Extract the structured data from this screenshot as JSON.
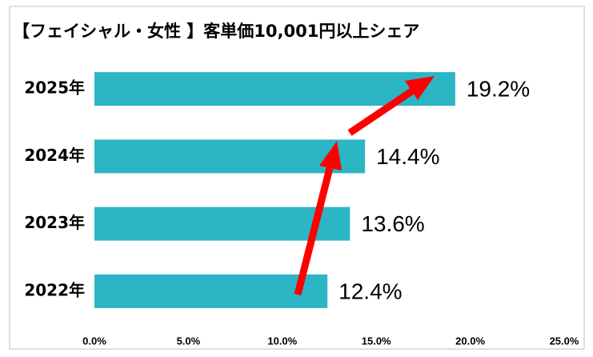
{
  "chart_data": {
    "type": "bar",
    "orientation": "horizontal",
    "title": "【フェイシャル・女性 】客単価10,001円以上シェア",
    "categories": [
      "2025年",
      "2024年",
      "2023年",
      "2022年"
    ],
    "values": [
      19.2,
      14.4,
      13.6,
      12.4
    ],
    "value_labels": [
      "19.2%",
      "14.4%",
      "13.6%",
      "12.4%"
    ],
    "color": "#2bb5c5",
    "xlim": [
      0,
      25
    ],
    "xticks": [
      {
        "value": 0,
        "label": "0.0%"
      },
      {
        "value": 5,
        "label": "5.0%"
      },
      {
        "value": 10,
        "label": "10.0%"
      },
      {
        "value": 15,
        "label": "15.0%"
      },
      {
        "value": 20,
        "label": "20.0%"
      },
      {
        "value": 25,
        "label": "25.0%"
      }
    ],
    "grid": false
  }
}
